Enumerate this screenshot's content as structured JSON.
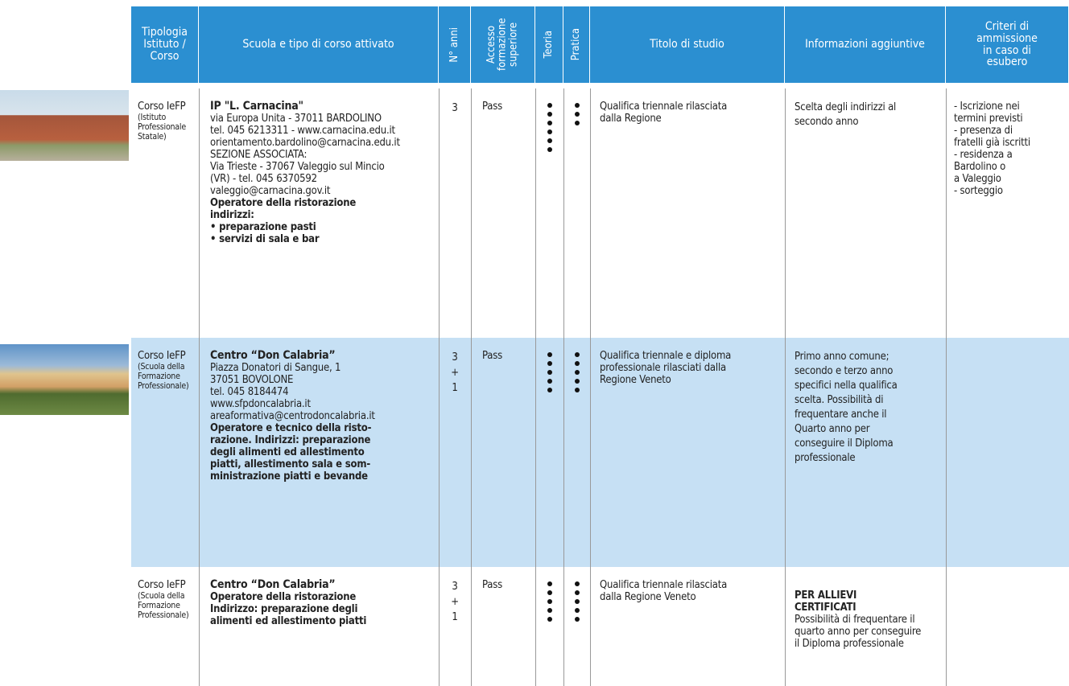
{
  "header": {
    "columns": [
      "Tipologia Istituto / Corso",
      "Scuola e tipo di corso attivato",
      "N° anni",
      "Accesso formazione superiore",
      "Teoria",
      "Pratica",
      "Titolo di studio",
      "Informazioni aggiuntive",
      "Criteri di ammissione in caso di esubero"
    ]
  },
  "rows": [
    {
      "tipologia": "Corso IeFP",
      "tipologia_note": [
        "(Istituto",
        "Professionale",
        "Statale)"
      ],
      "scuola": {
        "title": "IP \"L. Carnacina\"",
        "lines": [
          "via Europa Unita - 37011 BARDOLINO",
          "tel. 045 6213311 - www.carnacina.edu.it",
          "orientamento.bardolino@carnacina.edu.it",
          "SEZIONE ASSOCIATA:",
          "Via Trieste - 37067 Valeggio sul Mincio",
          "(VR) - tel. 045 6370592",
          "valeggio@carnacina.gov.it"
        ],
        "course": [
          "Operatore della ristorazione",
          "indirizzi:",
          "• preparazione pasti",
          "• servizi di sala e bar"
        ]
      },
      "anni": [
        "3"
      ],
      "accesso": "Pass",
      "teoria": 6,
      "pratica": 3,
      "titolo": [
        "Qualifica triennale rilasciata",
        "dalla Regione"
      ],
      "info": {
        "lines": [
          "Scelta degli indirizzi al",
          "secondo anno"
        ]
      },
      "criteri": [
        "- Iscrizione nei",
        "termini previsti",
        "- presenza di",
        "fratelli già iscritti",
        "- residenza a",
        "Bardolino o",
        "a Valeggio",
        "- sorteggio"
      ]
    },
    {
      "tipologia": "Corso IeFP",
      "tipologia_note": [
        "(Scuola della",
        "Formazione",
        "Professionale)"
      ],
      "scuola": {
        "title": "Centro “Don Calabria”",
        "lines": [
          "Piazza Donatori di Sangue, 1",
          "37051 BOVOLONE",
          "tel. 045 8184474",
          "www.sfpdoncalabria.it",
          "areaformativa@centrodoncalabria.it"
        ],
        "course": [
          "Operatore e tecnico della risto-",
          "razione. Indirizzi: preparazione",
          "degli alimenti ed allestimento",
          "piatti, allestimento sala e som-",
          "ministrazione piatti e bevande"
        ]
      },
      "anni": [
        "3",
        "+",
        "1"
      ],
      "accesso": "Pass",
      "teoria": 5,
      "pratica": 5,
      "titolo": [
        "Qualifica triennale e diploma",
        "professionale rilasciati dalla",
        "Regione Veneto"
      ],
      "info": {
        "lines": [
          "Primo anno comune;",
          "secondo e terzo anno",
          "specifici nella qualifica",
          "scelta. Possibilità di",
          "frequentare anche il",
          "Quarto anno per",
          "conseguire il Diploma",
          "professionale"
        ]
      },
      "criteri": []
    },
    {
      "tipologia": "Corso IeFP",
      "tipologia_note": [
        "(Scuola della",
        "Formazione",
        "Professionale)"
      ],
      "scuola": {
        "title": "Centro “Don Calabria”",
        "lines": [],
        "course": [
          "Operatore della ristorazione",
          "Indirizzo: preparazione degli",
          "alimenti ed allestimento piatti"
        ]
      },
      "anni": [
        "3",
        "+",
        "1"
      ],
      "accesso": "Pass",
      "teoria": 5,
      "pratica": 5,
      "titolo": [
        "Qualifica triennale rilasciata",
        "dalla Regione Veneto"
      ],
      "info": {
        "heading": [
          "PER ALLIEVI",
          "CERTIFICATI"
        ],
        "lines": [
          "Possibilità di frequentare il",
          "quarto anno per conseguire",
          "il Diploma professionale"
        ]
      },
      "criteri": []
    }
  ]
}
